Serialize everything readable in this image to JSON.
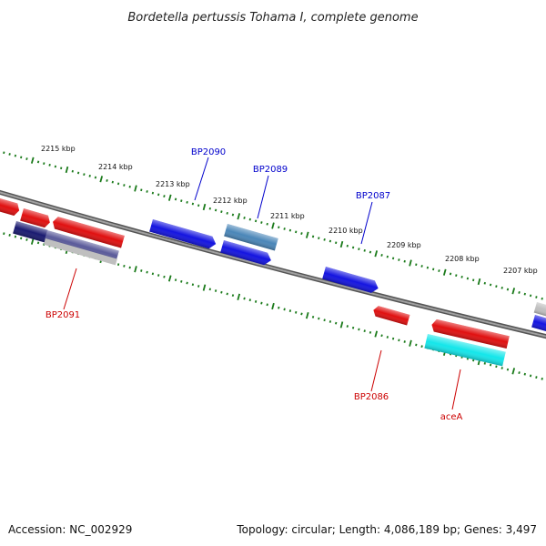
{
  "title": "Bordetella pertussis Tohama I, complete genome",
  "footer": {
    "accession": "Accession: NC_002929",
    "summary": "Topology: circular; Length: 4,086,189 bp; Genes: 3,497"
  },
  "kbp_labels": [
    "2215 kbp",
    "2214 kbp",
    "2213 kbp",
    "2212 kbp",
    "2211 kbp",
    "2210 kbp",
    "2209 kbp",
    "2208 kbp",
    "2207 kbp"
  ],
  "gene_labels": {
    "forward": [
      "BP2090",
      "BP2089",
      "BP2087"
    ],
    "reverse": [
      "BP2091",
      "BP2086",
      "aceA"
    ]
  },
  "colors": {
    "forward_label": "#0000cc",
    "reverse_label": "#cc0000",
    "backbone": "#7a7a7a",
    "tick": "#1a7a1a",
    "blue": "#1414e0",
    "steel": "#4a86b8",
    "red": "#e01010",
    "navy": "#1a1a70",
    "cyan": "#14e6ea",
    "grey": "#bfbfbf"
  }
}
